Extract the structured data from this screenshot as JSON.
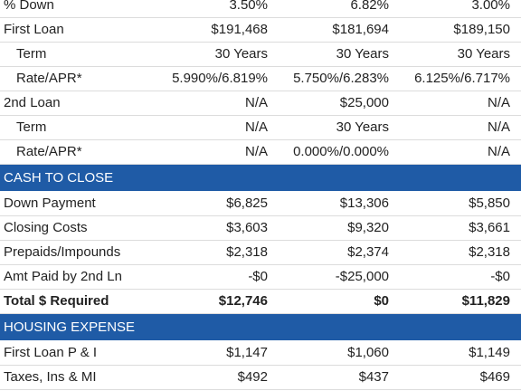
{
  "sections": [
    {
      "rows": [
        {
          "label": "% Down",
          "values": [
            "3.50%",
            "6.82%",
            "3.00%"
          ]
        },
        {
          "label": "First Loan",
          "values": [
            "$191,468",
            "$181,694",
            "$189,150"
          ]
        },
        {
          "label": "Term",
          "indent": true,
          "values": [
            "30 Years",
            "30 Years",
            "30 Years"
          ]
        },
        {
          "label": "Rate/APR*",
          "indent": true,
          "values": [
            "5.990%/6.819%",
            "5.750%/6.283%",
            "6.125%/6.717%"
          ]
        },
        {
          "label": "2nd Loan",
          "values": [
            "N/A",
            "$25,000",
            "N/A"
          ]
        },
        {
          "label": "Term",
          "indent": true,
          "values": [
            "N/A",
            "30 Years",
            "N/A"
          ]
        },
        {
          "label": "Rate/APR*",
          "indent": true,
          "values": [
            "N/A",
            "0.000%/0.000%",
            "N/A"
          ]
        }
      ]
    },
    {
      "title": "CASH TO CLOSE",
      "rows": [
        {
          "label": "Down Payment",
          "values": [
            "$6,825",
            "$13,306",
            "$5,850"
          ]
        },
        {
          "label": "Closing Costs",
          "values": [
            "$3,603",
            "$9,320",
            "$3,661"
          ]
        },
        {
          "label": "Prepaids/Impounds",
          "values": [
            "$2,318",
            "$2,374",
            "$2,318"
          ]
        },
        {
          "label": "Amt Paid by 2nd Ln",
          "values": [
            "-$0",
            "-$25,000",
            "-$0"
          ]
        },
        {
          "label": "Total $ Required",
          "bold": true,
          "values": [
            "$12,746",
            "$0",
            "$11,829"
          ]
        }
      ]
    },
    {
      "title": "HOUSING EXPENSE",
      "rows": [
        {
          "label": "First Loan P & I",
          "values": [
            "$1,147",
            "$1,060",
            "$1,149"
          ]
        },
        {
          "label": "Taxes, Ins & MI",
          "values": [
            "$492",
            "$437",
            "$469"
          ]
        }
      ]
    }
  ]
}
